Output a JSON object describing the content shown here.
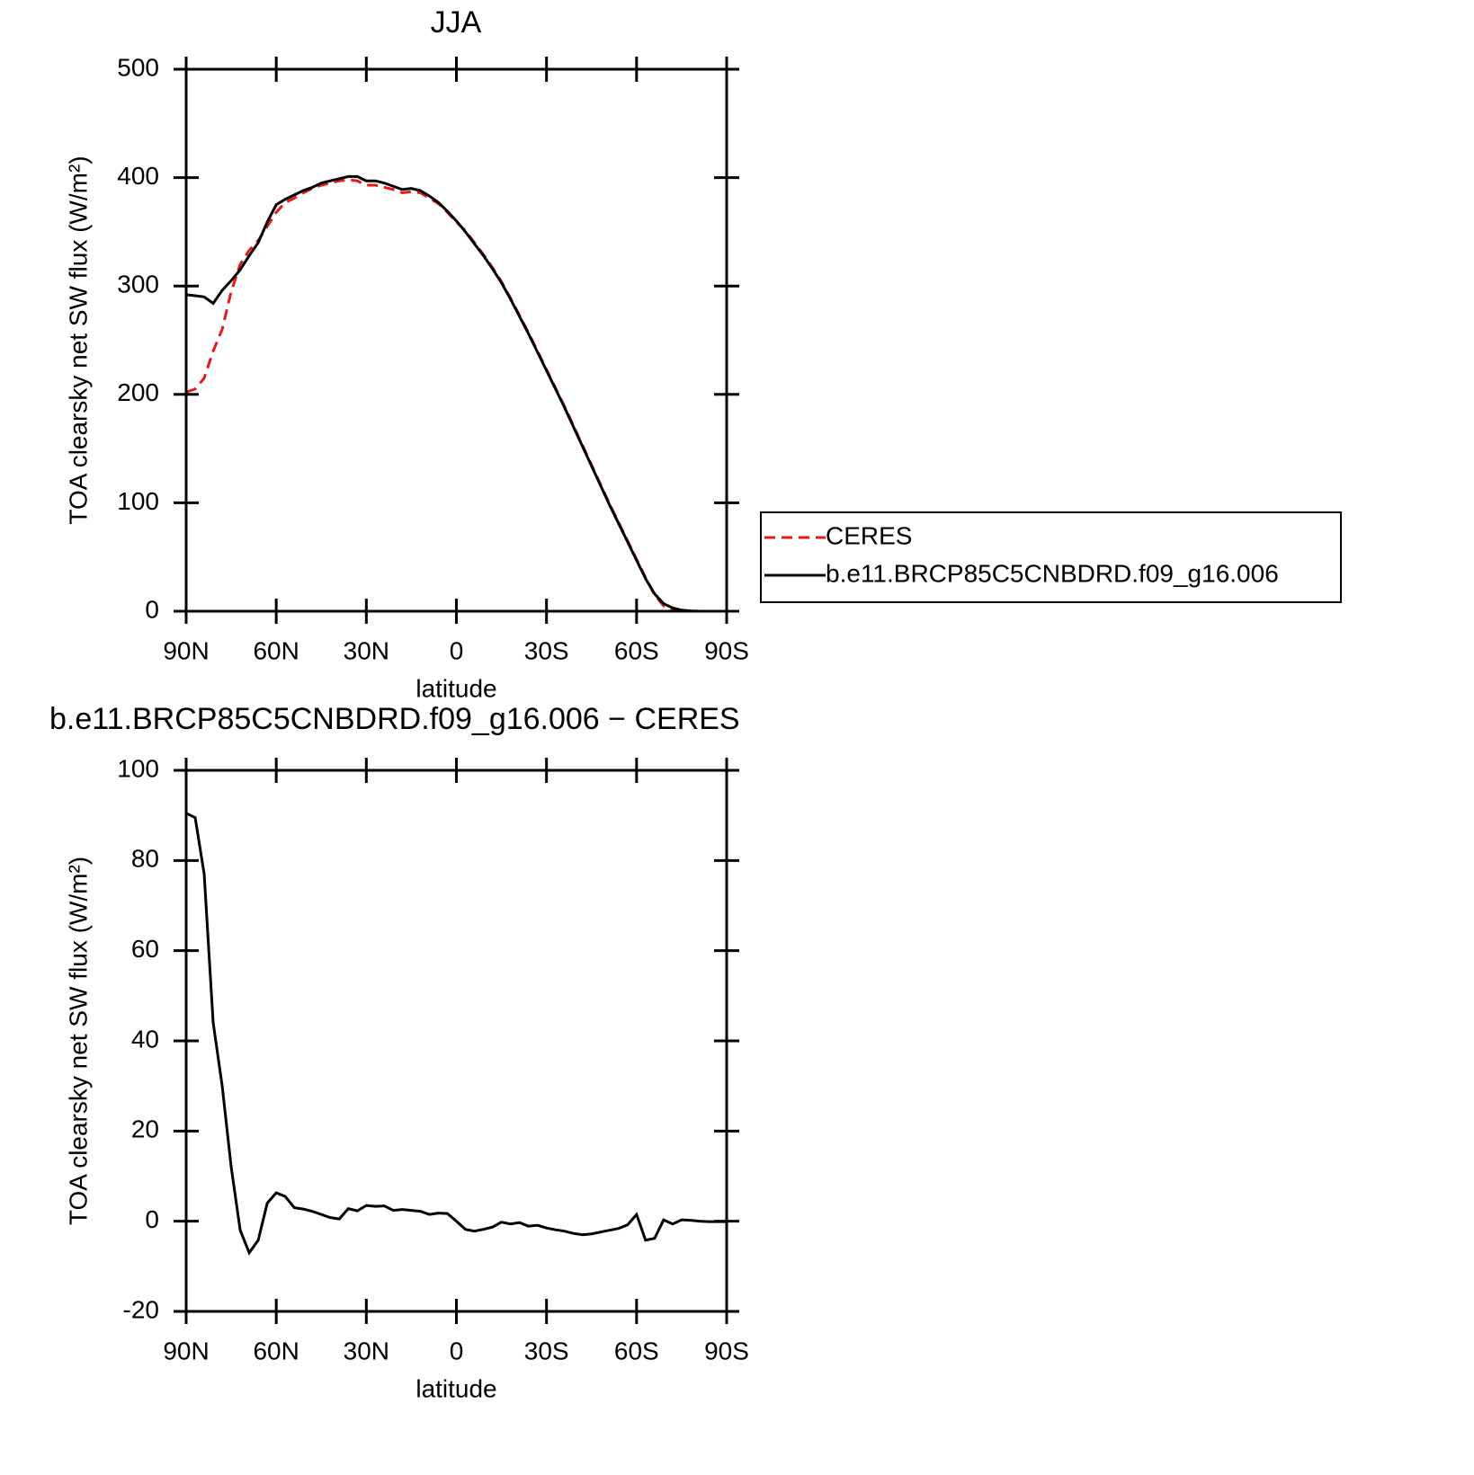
{
  "chart_data": [
    {
      "type": "line",
      "title": "JJA",
      "xlabel": "latitude",
      "ylabel": "TOA clearsky net SW flux (W/m²)",
      "x": [
        90,
        87,
        84,
        81,
        78,
        75,
        72,
        69,
        66,
        63,
        60,
        57,
        54,
        51,
        48,
        45,
        42,
        39,
        36,
        33,
        30,
        27,
        24,
        21,
        18,
        15,
        12,
        9,
        6,
        3,
        0,
        -3,
        -6,
        -9,
        -12,
        -15,
        -18,
        -21,
        -24,
        -27,
        -30,
        -33,
        -36,
        -39,
        -42,
        -45,
        -48,
        -51,
        -54,
        -57,
        -60,
        -63,
        -66,
        -69,
        -72,
        -75,
        -78,
        -81,
        -84,
        -87,
        -90
      ],
      "series": [
        {
          "name": "CERES",
          "color": "#e41a1c",
          "linestyle": "dashed",
          "values": [
            202,
            205,
            215,
            240,
            260,
            295,
            320,
            333,
            342,
            355,
            368,
            377,
            381,
            386,
            390,
            393,
            395,
            397,
            398,
            397,
            393,
            393,
            391,
            389,
            386,
            387,
            386,
            381,
            376,
            368,
            359,
            351,
            340,
            329,
            317,
            304,
            289,
            273,
            257,
            240,
            223,
            206,
            189,
            171,
            153,
            135,
            117,
            99,
            82,
            65,
            48,
            31,
            15,
            5,
            2,
            1,
            0,
            0,
            0,
            0,
            0
          ]
        },
        {
          "name": "b.e11.BRCP85C5CNBDRD.f09_g16.006",
          "color": "#000000",
          "linestyle": "solid",
          "values": [
            292,
            291,
            290,
            284,
            296,
            305,
            315,
            328,
            340,
            359,
            375,
            380,
            384,
            388,
            391,
            395,
            397,
            399,
            401,
            401,
            397,
            397,
            395,
            392,
            389,
            390,
            388,
            383,
            377,
            369,
            360,
            350,
            339,
            328,
            316,
            303,
            288,
            272,
            256,
            239,
            222,
            205,
            188,
            170,
            152,
            134,
            116,
            98,
            81,
            64,
            47,
            30,
            16,
            7,
            3,
            1,
            0.3,
            0,
            0,
            0,
            0
          ]
        }
      ],
      "xlim": [
        90,
        -90
      ],
      "xticks": [
        {
          "value": 90,
          "label": "90N"
        },
        {
          "value": 60,
          "label": "60N"
        },
        {
          "value": 30,
          "label": "30N"
        },
        0,
        {
          "value": -30,
          "label": "30S"
        },
        {
          "value": -60,
          "label": "60S"
        },
        {
          "value": -90,
          "label": "90S"
        }
      ],
      "ylim": [
        0,
        500
      ],
      "yticks": [
        0,
        100,
        200,
        300,
        400,
        500
      ],
      "legend": "outside-right"
    },
    {
      "type": "line",
      "title": "b.e11.BRCP85C5CNBDRD.f09_g16.006 − CERES",
      "xlabel": "latitude",
      "ylabel": "TOA clearsky net SW flux (W/m²)",
      "x": [
        90,
        87,
        84,
        81,
        78,
        75,
        72,
        69,
        66,
        63,
        60,
        57,
        54,
        51,
        48,
        45,
        42,
        39,
        36,
        33,
        30,
        27,
        24,
        21,
        18,
        15,
        12,
        9,
        6,
        3,
        0,
        -3,
        -6,
        -9,
        -12,
        -15,
        -18,
        -21,
        -24,
        -27,
        -30,
        -33,
        -36,
        -39,
        -42,
        -45,
        -48,
        -51,
        -54,
        -57,
        -60,
        -63,
        -66,
        -69,
        -72,
        -75,
        -78,
        -81,
        -84,
        -87,
        -90
      ],
      "series": [
        {
          "color": "#000000",
          "linestyle": "solid",
          "values": [
            90.5,
            89.5,
            77,
            44,
            30,
            12,
            -2,
            -7,
            -4.2,
            4,
            6.3,
            5.5,
            3,
            2.7,
            2.2,
            1.5,
            0.8,
            0.5,
            2.8,
            2.3,
            3.5,
            3.3,
            3.4,
            2.4,
            2.6,
            2.4,
            2.2,
            1.5,
            1.8,
            1.7,
            0,
            -1.8,
            -2.2,
            -1.8,
            -1.3,
            -0.2,
            -0.6,
            -0.3,
            -1.1,
            -0.9,
            -1.5,
            -1.9,
            -2.2,
            -2.7,
            -3,
            -2.8,
            -2.4,
            -2,
            -1.6,
            -0.8,
            1.5,
            -4.2,
            -3.8,
            0.3,
            -0.6,
            0.3,
            0.2,
            0,
            -0.1,
            -0.1,
            -0.1
          ]
        }
      ],
      "xlim": [
        90,
        -90
      ],
      "xticks": [
        {
          "value": 90,
          "label": "90N"
        },
        {
          "value": 60,
          "label": "60N"
        },
        {
          "value": 30,
          "label": "30N"
        },
        0,
        {
          "value": -30,
          "label": "30S"
        },
        {
          "value": -60,
          "label": "60S"
        },
        {
          "value": -90,
          "label": "90S"
        }
      ],
      "ylim": [
        -20,
        100
      ],
      "yticks": [
        -20,
        0,
        20,
        40,
        60,
        80,
        100
      ]
    }
  ]
}
